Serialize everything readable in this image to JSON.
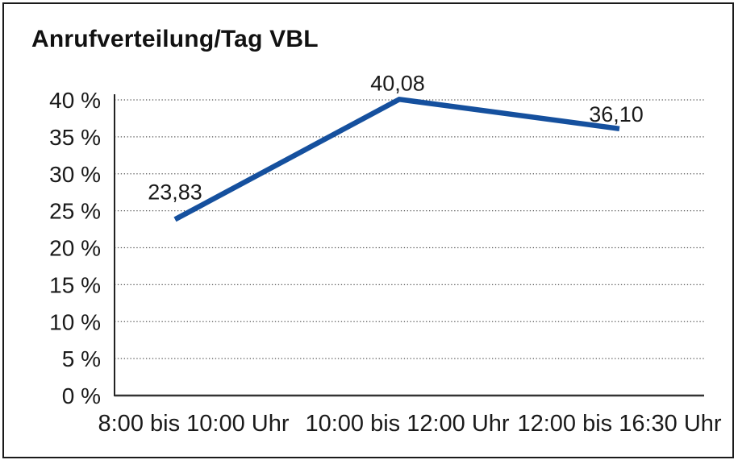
{
  "chart": {
    "title": "Anrufverteilung/Tag VBL"
  },
  "chart_data": {
    "type": "line",
    "title": "Anrufverteilung/Tag VBL",
    "categories": [
      "8:00 bis 10:00 Uhr",
      "10:00 bis 12:00 Uhr",
      "12:00 bis 16:30 Uhr"
    ],
    "values": [
      23.83,
      40.08,
      36.1
    ],
    "data_labels": [
      "23,83",
      "40,08",
      "36,10"
    ],
    "y_ticks": [
      0,
      5,
      10,
      15,
      20,
      25,
      30,
      35,
      40
    ],
    "y_tick_labels": [
      "0 %",
      "5 %",
      "10 %",
      "15 %",
      "20 %",
      "25 %",
      "30 %",
      "35 %",
      "40 %"
    ],
    "ylim": [
      0,
      40
    ],
    "xlabel": "",
    "ylabel": "",
    "grid": "horizontal-dotted",
    "legend": "none",
    "colors": {
      "line": "#15509E",
      "text": "#1a1a1a",
      "grid": "#555555",
      "axis": "#333333",
      "frame": "#1a1a1a",
      "background": "#ffffff"
    }
  }
}
